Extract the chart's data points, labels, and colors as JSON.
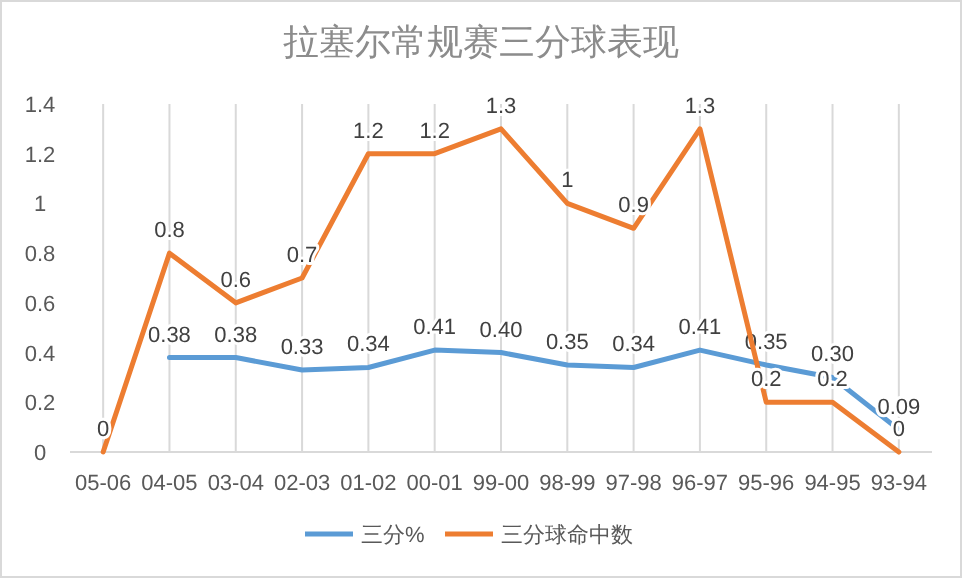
{
  "chart_data": {
    "type": "line",
    "title": "拉塞尔常规赛三分球表现",
    "categories": [
      "05-06",
      "04-05",
      "03-04",
      "02-03",
      "01-02",
      "00-01",
      "99-00",
      "98-99",
      "97-98",
      "96-97",
      "95-96",
      "94-95",
      "93-94"
    ],
    "series": [
      {
        "name": "三分%",
        "color": "#5b9bd5",
        "values": [
          null,
          0.38,
          0.38,
          0.33,
          0.34,
          0.41,
          0.4,
          0.35,
          0.34,
          0.41,
          0.35,
          0.3,
          0.09
        ],
        "value_labels": [
          null,
          "0.38",
          "0.38",
          "0.33",
          "0.34",
          "0.41",
          "0.40",
          "0.35",
          "0.34",
          "0.41",
          "0.35",
          "0.30",
          "0.09"
        ]
      },
      {
        "name": "三分球命中数",
        "color": "#ed7d31",
        "values": [
          0,
          0.8,
          0.6,
          0.7,
          1.2,
          1.2,
          1.3,
          1,
          0.9,
          1.3,
          0.2,
          0.2,
          0
        ],
        "value_labels": [
          "0",
          "0.8",
          "0.6",
          "0.7",
          "1.2",
          "1.2",
          "1.3",
          "1",
          "0.9",
          "1.3",
          "0.2",
          "0.2",
          "0"
        ]
      }
    ],
    "ylim": [
      0,
      1.4
    ],
    "yticks": [
      0,
      0.2,
      0.4,
      0.6,
      0.8,
      1,
      1.2,
      1.4
    ],
    "grid": "x",
    "legend": "bottom"
  }
}
